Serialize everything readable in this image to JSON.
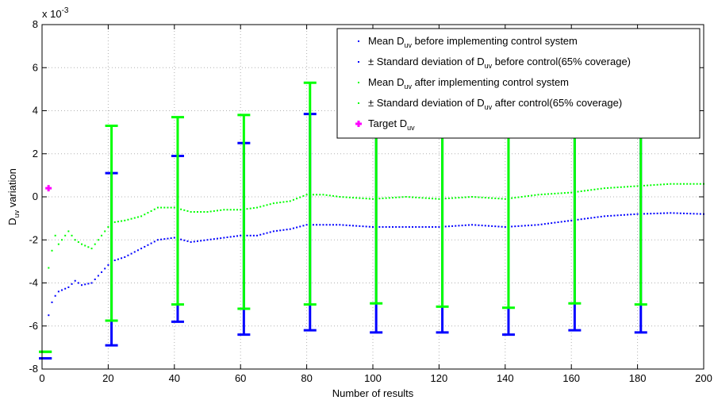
{
  "chart_data": {
    "type": "scatter",
    "title": "",
    "xlabel": "Number of results",
    "ylabel": "D",
    "ylabel_sub": "uv",
    "ylabel_suffix": " variation",
    "y_exponent": "x 10",
    "y_exponent_power": "-3",
    "xlim": [
      0,
      200
    ],
    "ylim": [
      -8,
      8
    ],
    "x_ticks": [
      0,
      20,
      40,
      60,
      80,
      100,
      120,
      140,
      160,
      180,
      200
    ],
    "y_ticks": [
      -8,
      -6,
      -4,
      -2,
      0,
      2,
      4,
      6,
      8
    ],
    "grid": true,
    "legend_position": "top-right",
    "colors": {
      "before": "#0000ff",
      "after": "#00ff00",
      "target": "#ff00ff"
    },
    "legend": [
      {
        "symbol": "dot",
        "color": "#0000ff",
        "pre": "Mean D",
        "sub": "uv",
        "post": " before implementing control system"
      },
      {
        "symbol": "dot",
        "color": "#0000ff",
        "pre": "± Standard deviation of D",
        "sub": "uv",
        "post": " before control(65% coverage)"
      },
      {
        "symbol": "dot",
        "color": "#00ff00",
        "pre": "Mean D",
        "sub": "uv",
        "post": " after implementing control system"
      },
      {
        "symbol": "dot",
        "color": "#00ff00",
        "pre": "± Standard deviation of D",
        "sub": "uv",
        "post": " after control(65% coverage)"
      },
      {
        "symbol": "plus",
        "color": "#ff00ff",
        "pre": "Target D",
        "sub": "uv",
        "post": ""
      }
    ],
    "target": {
      "x": 1,
      "y": 0.4
    },
    "mean_before_keypoints": [
      [
        1,
        -7.5
      ],
      [
        2,
        -5.5
      ],
      [
        3,
        -4.9
      ],
      [
        4,
        -4.6
      ],
      [
        5,
        -4.4
      ],
      [
        8,
        -4.2
      ],
      [
        10,
        -3.9
      ],
      [
        12,
        -4.1
      ],
      [
        15,
        -4.0
      ],
      [
        18,
        -3.5
      ],
      [
        21,
        -3.0
      ],
      [
        25,
        -2.8
      ],
      [
        30,
        -2.4
      ],
      [
        35,
        -2.0
      ],
      [
        40,
        -1.9
      ],
      [
        45,
        -2.1
      ],
      [
        50,
        -2.0
      ],
      [
        55,
        -1.9
      ],
      [
        60,
        -1.8
      ],
      [
        65,
        -1.8
      ],
      [
        70,
        -1.6
      ],
      [
        75,
        -1.5
      ],
      [
        80,
        -1.3
      ],
      [
        90,
        -1.3
      ],
      [
        100,
        -1.4
      ],
      [
        110,
        -1.4
      ],
      [
        120,
        -1.4
      ],
      [
        130,
        -1.3
      ],
      [
        140,
        -1.4
      ],
      [
        150,
        -1.3
      ],
      [
        160,
        -1.1
      ],
      [
        170,
        -0.9
      ],
      [
        180,
        -0.8
      ],
      [
        190,
        -0.75
      ],
      [
        200,
        -0.8
      ]
    ],
    "mean_after_keypoints": [
      [
        1,
        -7.2
      ],
      [
        2,
        -3.3
      ],
      [
        3,
        -2.5
      ],
      [
        4,
        -1.8
      ],
      [
        5,
        -2.2
      ],
      [
        8,
        -1.6
      ],
      [
        10,
        -2.0
      ],
      [
        12,
        -2.2
      ],
      [
        15,
        -2.4
      ],
      [
        18,
        -1.8
      ],
      [
        21,
        -1.2
      ],
      [
        25,
        -1.1
      ],
      [
        30,
        -0.9
      ],
      [
        35,
        -0.5
      ],
      [
        40,
        -0.5
      ],
      [
        45,
        -0.7
      ],
      [
        50,
        -0.7
      ],
      [
        55,
        -0.6
      ],
      [
        60,
        -0.6
      ],
      [
        65,
        -0.5
      ],
      [
        70,
        -0.3
      ],
      [
        75,
        -0.2
      ],
      [
        80,
        0.1
      ],
      [
        85,
        0.1
      ],
      [
        90,
        0.0
      ],
      [
        100,
        -0.1
      ],
      [
        110,
        0.0
      ],
      [
        120,
        -0.1
      ],
      [
        130,
        0.0
      ],
      [
        140,
        -0.1
      ],
      [
        150,
        0.1
      ],
      [
        160,
        0.2
      ],
      [
        170,
        0.4
      ],
      [
        180,
        0.5
      ],
      [
        190,
        0.6
      ],
      [
        200,
        0.6
      ]
    ],
    "error_bars_before": [
      {
        "x": 21,
        "low": -6.9,
        "high": 1.1
      },
      {
        "x": 41,
        "low": -5.8,
        "high": 1.9
      },
      {
        "x": 61,
        "low": -6.4,
        "high": 2.5
      },
      {
        "x": 81,
        "low": -6.2,
        "high": 3.85
      },
      {
        "x": 101,
        "low": -6.3,
        "high": 5.6
      },
      {
        "x": 121,
        "low": -6.3,
        "high": 5.6
      },
      {
        "x": 141,
        "low": -6.4,
        "high": 5.6
      },
      {
        "x": 161,
        "low": -6.2,
        "high": 5.6
      },
      {
        "x": 181,
        "low": -6.3,
        "high": 5.6
      },
      {
        "x": 1,
        "low": -7.5,
        "high": -7.5
      }
    ],
    "error_bars_after": [
      {
        "x": 21,
        "low": -5.75,
        "high": 3.3
      },
      {
        "x": 41,
        "low": -5.0,
        "high": 3.7
      },
      {
        "x": 61,
        "low": -5.2,
        "high": 3.8
      },
      {
        "x": 81,
        "low": -5.0,
        "high": 5.3
      },
      {
        "x": 101,
        "low": -4.95,
        "high": 5.6
      },
      {
        "x": 121,
        "low": -5.1,
        "high": 5.6
      },
      {
        "x": 141,
        "low": -5.15,
        "high": 5.6
      },
      {
        "x": 161,
        "low": -4.95,
        "high": 5.6
      },
      {
        "x": 181,
        "low": -5.0,
        "high": 5.6
      },
      {
        "x": 1,
        "low": -7.2,
        "high": -7.2
      }
    ]
  }
}
